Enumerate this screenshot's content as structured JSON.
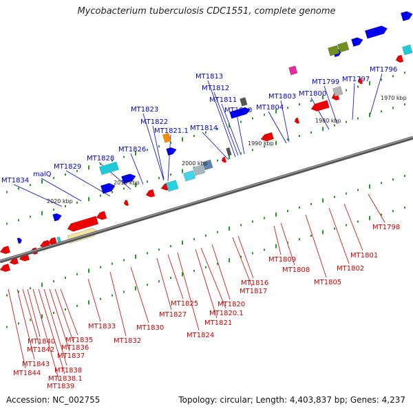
{
  "title": "Mycobacterium tuberculosis CDC1551, complete genome",
  "footer": {
    "accession": "Accession: NC_002755",
    "summary": "Topology: circular; Length: 4,403,837 bp; Genes: 4,237"
  },
  "colors": {
    "label_top": "#0000cc",
    "label_bottom": "#cc0000",
    "genome_line": "#777777",
    "tick": "#229922",
    "forward_gene": "#0000ee",
    "reverse_gene": "#ee0000"
  },
  "scale_labels": [
    "2020 kbp",
    "2010 kbp",
    "2000 kbp",
    "1990 kbp",
    "1980 kbp",
    "1970 kbp"
  ],
  "top_labels": [
    "MT1834",
    "malQ",
    "MT1829",
    "MT1828",
    "MT1826",
    "MT1823",
    "MT1822",
    "MT1821.1",
    "MT1814",
    "MT1813",
    "MT1812",
    "MT1811",
    "MT1810",
    "MT1804",
    "MT1803",
    "MT1800",
    "MT1799",
    "MT1797",
    "MT1796"
  ],
  "bottom_labels": [
    "MT1844",
    "MT1843",
    "MT1842",
    "MT1840",
    "MT1839",
    "MT1838.1",
    "MT1838",
    "MT1837",
    "MT1836",
    "MT1835",
    "MT1833",
    "MT1832",
    "MT1830",
    "MT1827",
    "MT1825",
    "MT1824",
    "MT1821",
    "MT1820.1",
    "MT1820",
    "MT1817",
    "MT1816",
    "MT1809",
    "MT1808",
    "MT1805",
    "MT1802",
    "MT1801",
    "MT1798"
  ]
}
